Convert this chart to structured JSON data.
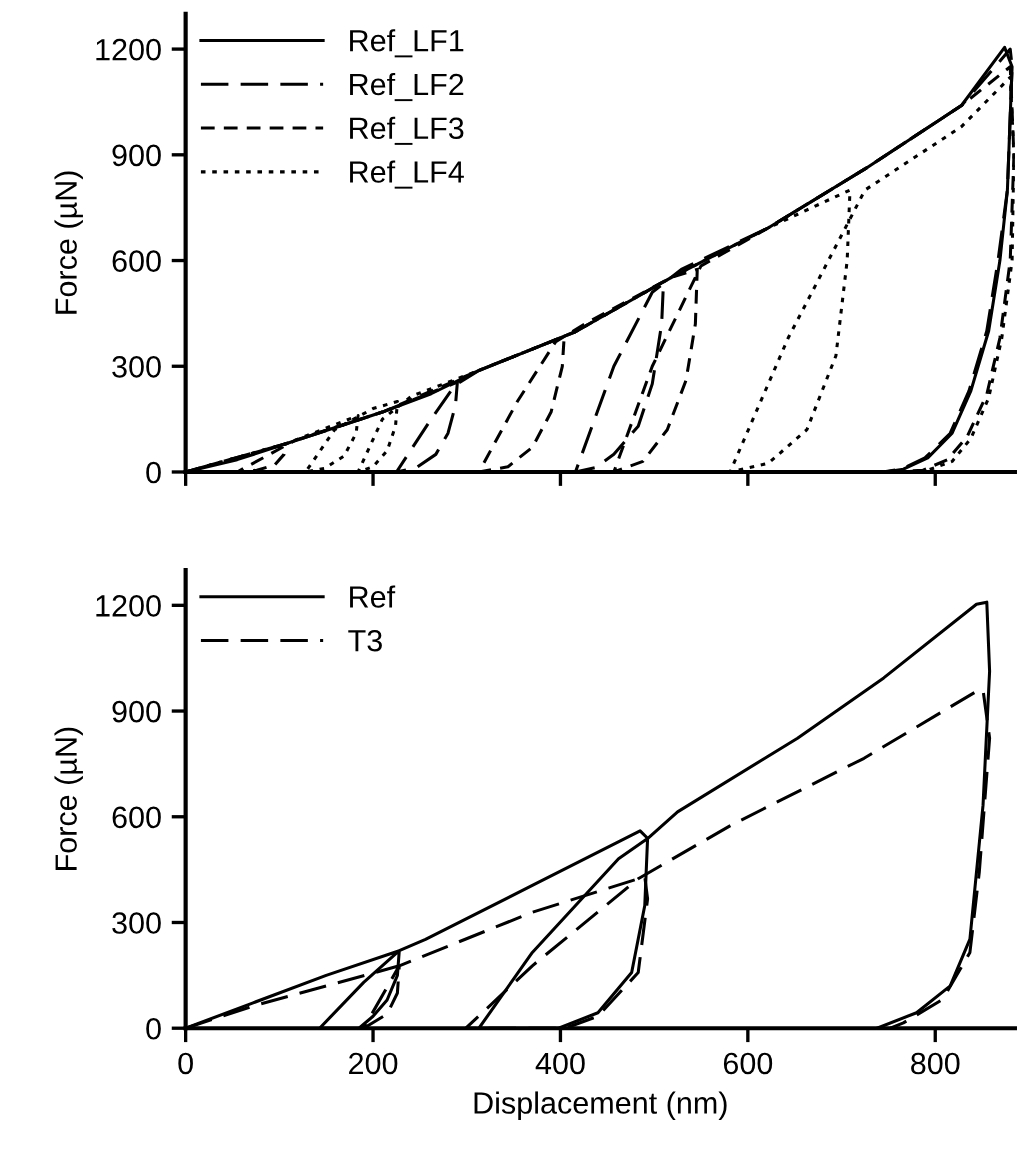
{
  "chart_data": [
    {
      "type": "line",
      "ylabel": "Force (µN)",
      "xlim": [
        0,
        885
      ],
      "ylim": [
        0,
        1300
      ],
      "xticks": [
        0,
        200,
        400,
        600,
        800
      ],
      "yticks": [
        0,
        300,
        600,
        900,
        1200
      ],
      "tick_labels": "y",
      "legend": "top left",
      "grid": false,
      "marker": "none",
      "series": [
        {
          "name": "Ref_LF1",
          "color": "#000000",
          "line_style": "solid",
          "x": [
            0,
            55,
            107,
            210,
            262,
            313,
            416,
            519,
            622,
            725,
            828,
            874,
            882,
            877,
            869,
            857,
            838,
            818,
            792,
            766,
            746
          ],
          "values": [
            0,
            35,
            80,
            170,
            222,
            288,
            398,
            553,
            693,
            860,
            1040,
            1205,
            1150,
            800,
            600,
            400,
            230,
            110,
            40,
            8,
            0
          ]
        },
        {
          "name": "Ref_LF2",
          "color": "#000000",
          "line_style": "dashed",
          "x": [
            0,
            107,
            210,
            290,
            288,
            280,
            267,
            246,
            225,
            262,
            287,
            313,
            416,
            510,
            508,
            498,
            483,
            457,
            437,
            416,
            457,
            498,
            529,
            622,
            725,
            828,
            880,
            882,
            877,
            867,
            855,
            836,
            816,
            789,
            764,
            744
          ],
          "values": [
            0,
            80,
            170,
            255,
            190,
            110,
            50,
            12,
            0,
            150,
            245,
            288,
            398,
            540,
            420,
            250,
            130,
            50,
            12,
            0,
            300,
            510,
            575,
            693,
            860,
            1040,
            1200,
            1150,
            800,
            600,
            400,
            230,
            110,
            40,
            8,
            0
          ]
        },
        {
          "name": "Ref_LF3",
          "color": "#000000",
          "line_style": "dashed",
          "x": [
            0,
            107,
            105,
            95,
            76,
            55,
            86,
            117,
            210,
            313,
            404,
            402,
            390,
            370,
            344,
            313,
            354,
            395,
            426,
            519,
            546,
            544,
            534,
            514,
            488,
            457,
            498,
            550,
            622,
            725,
            828,
            880,
            884,
            880,
            869,
            855,
            834,
            813,
            787,
            756
          ],
          "values": [
            0,
            80,
            50,
            20,
            5,
            0,
            45,
            90,
            170,
            288,
            385,
            300,
            170,
            70,
            15,
            0,
            200,
            370,
            420,
            553,
            575,
            420,
            260,
            120,
            30,
            0,
            300,
            585,
            693,
            860,
            1040,
            1150,
            900,
            600,
            380,
            220,
            100,
            35,
            5,
            0
          ]
        },
        {
          "name": "Ref_LF4",
          "color": "#000000",
          "line_style": "dotted",
          "x": [
            0,
            107,
            184,
            182,
            169,
            148,
            128,
            159,
            200,
            226,
            224,
            215,
            200,
            184,
            210,
            241,
            313,
            416,
            519,
            622,
            709,
            706,
            694,
            663,
            622,
            581,
            643,
            725,
            828,
            880,
            884,
            882,
            871,
            857,
            838,
            818,
            792,
            766
          ],
          "values": [
            0,
            80,
            160,
            110,
            45,
            10,
            0,
            120,
            180,
            200,
            130,
            60,
            15,
            0,
            150,
            215,
            288,
            398,
            553,
            693,
            800,
            600,
            330,
            120,
            25,
            0,
            380,
            800,
            980,
            1120,
            900,
            600,
            380,
            210,
            95,
            30,
            5,
            0
          ]
        }
      ]
    },
    {
      "type": "line",
      "xlabel": "Displacement (nm)",
      "ylabel": "Force (µN)",
      "xlim": [
        0,
        885
      ],
      "ylim": [
        0,
        1300
      ],
      "xticks": [
        0,
        200,
        400,
        600,
        800
      ],
      "yticks": [
        0,
        300,
        600,
        900,
        1200
      ],
      "legend": "top left",
      "grid": false,
      "marker": "none",
      "series": [
        {
          "name": "Ref",
          "color": "#000000",
          "line_style": "solid",
          "x": [
            0,
            72,
            150,
            228,
            226,
            215,
            200,
            185,
            143,
            190,
            228,
            256,
            370,
            485,
            493,
            490,
            476,
            440,
            398,
            313,
            370,
            462,
            493,
            525,
            653,
            745,
            844,
            855,
            858,
            851,
            837,
            816,
            780,
            738
          ],
          "values": [
            0,
            72,
            150,
            220,
            150,
            80,
            34,
            0,
            0,
            130,
            220,
            252,
            405,
            560,
            539,
            348,
            158,
            44,
            0,
            0,
            215,
            481,
            538,
            614,
            823,
            994,
            1203,
            1209,
            1013,
            633,
            253,
            120,
            44,
            0
          ]
        },
        {
          "name": "T3",
          "color": "#000000",
          "line_style": "dashed",
          "x": [
            0,
            72,
            150,
            228,
            226,
            215,
            190,
            228,
            370,
            490,
            493,
            483,
            440,
            405,
            299,
            370,
            483,
            582,
            724,
            844,
            851,
            858,
            847,
            837,
            808,
            766,
            752
          ],
          "values": [
            0,
            63,
            120,
            177,
            100,
            40,
            0,
            177,
            329,
            430,
            367,
            158,
            34,
            0,
            0,
            177,
            424,
            576,
            766,
            956,
            960,
            823,
            443,
            215,
            82,
            15,
            0
          ]
        }
      ]
    }
  ]
}
